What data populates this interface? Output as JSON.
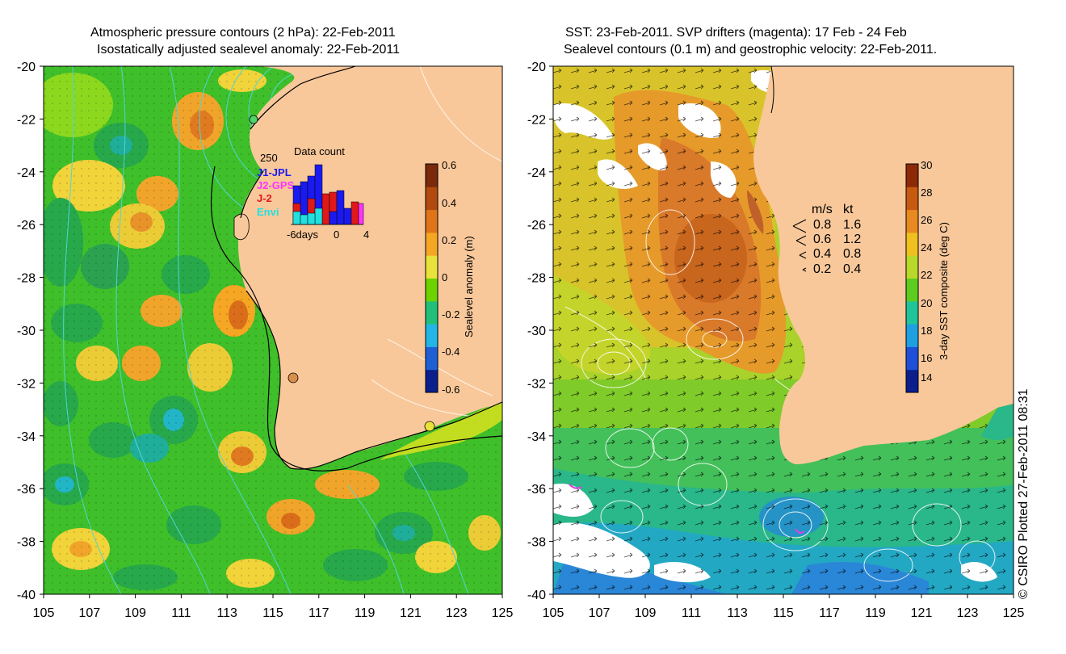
{
  "left_panel": {
    "title_line1": "Atmospheric pressure contours (2 hPa): 22-Feb-2011",
    "title_line2": "Isostatically adjusted sealevel anomaly: 22-Feb-2011",
    "colorbar": {
      "label": "Sealevel anomaly (m)",
      "ticks": [
        "0.6",
        "0.4",
        "0.2",
        "0",
        "-0.2",
        "-0.4",
        "-0.6"
      ],
      "colors": [
        "#0a1e8c",
        "#1f5fd6",
        "#22b5e6",
        "#21c07a",
        "#6cd200",
        "#e8e23a",
        "#f5a623",
        "#e07418",
        "#b24a0f",
        "#7a2a0a"
      ]
    },
    "data_count": {
      "title": "Data count",
      "max_label": "250",
      "legend": [
        {
          "label": "J1-JPL",
          "color": "#1a1af0"
        },
        {
          "label": "J2-GPS",
          "color": "#ff33ff"
        },
        {
          "label": "J-2",
          "color": "#e01818"
        },
        {
          "label": "Envi",
          "color": "#22e0e0"
        }
      ],
      "xlabels": [
        "-6days",
        "0",
        "4"
      ]
    }
  },
  "right_panel": {
    "title_line1": "SST: 23-Feb-2011. SVP drifters (magenta): 17 Feb - 24 Feb",
    "title_line2": "Sealevel contours (0.1 m) and geostrophic velocity: 22-Feb-2011.",
    "colorbar": {
      "label": "3-day SST composite (deg C)",
      "ticks": [
        "30",
        "28",
        "26",
        "24",
        "22",
        "20",
        "18",
        "16",
        "14"
      ],
      "colors": [
        "#0a1e8c",
        "#1e4fd8",
        "#1ea0e0",
        "#1fc49a",
        "#5ccc20",
        "#b8d82a",
        "#f0c020",
        "#e88a20",
        "#c85a10",
        "#8c2a08"
      ]
    },
    "velocity_legend": {
      "header_ms": "m/s",
      "header_kt": "kt",
      "rows": [
        {
          "ms": "0.8",
          "kt": "1.6"
        },
        {
          "ms": "0.6",
          "kt": "1.2"
        },
        {
          "ms": "0.4",
          "kt": "0.8"
        },
        {
          "ms": "0.2",
          "kt": "0.4"
        }
      ]
    }
  },
  "axes": {
    "y_ticks": [
      "-20",
      "-22",
      "-24",
      "-26",
      "-28",
      "-30",
      "-32",
      "-34",
      "-36",
      "-38",
      "-40"
    ],
    "x_ticks": [
      "105",
      "107",
      "109",
      "111",
      "113",
      "115",
      "117",
      "119",
      "121",
      "123",
      "125"
    ]
  },
  "colors": {
    "land": "#f9c89a",
    "ocean_green": "#3fbf2a",
    "contour_cyan": "#4fd6d6",
    "drifter": "#e040e0"
  },
  "copyright": "© CSIRO Plotted 27-Feb-2011 08:31"
}
